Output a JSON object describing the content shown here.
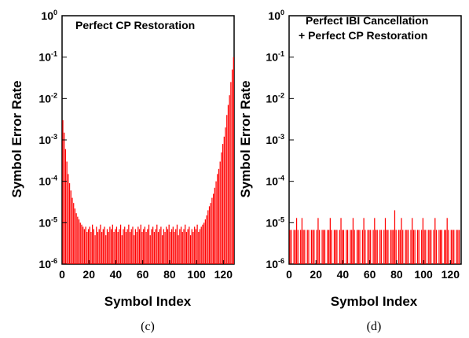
{
  "chart_data": [
    {
      "panel": "c",
      "type": "bar",
      "title": "Perfect CP Restoration",
      "caption": "(c)",
      "xlabel": "Symbol Index",
      "ylabel": "Symbol Error Rate",
      "xlim": [
        0,
        128
      ],
      "ylim": [
        1e-06,
        1
      ],
      "yscale": "log",
      "xticks": [
        0,
        20,
        40,
        60,
        80,
        100,
        120
      ],
      "yticks": [
        {
          "base": "10",
          "exp": "0",
          "value": 1
        },
        {
          "base": "10",
          "exp": "-1",
          "value": 0.1
        },
        {
          "base": "10",
          "exp": "-2",
          "value": 0.01
        },
        {
          "base": "10",
          "exp": "-3",
          "value": 0.001
        },
        {
          "base": "10",
          "exp": "-4",
          "value": 0.0001
        },
        {
          "base": "10",
          "exp": "-5",
          "value": 1e-05
        },
        {
          "base": "10",
          "exp": "-6",
          "value": 1e-06
        }
      ],
      "color": "#ff0000",
      "x": [
        0,
        1,
        2,
        3,
        4,
        5,
        6,
        7,
        8,
        9,
        10,
        11,
        12,
        13,
        14,
        15,
        16,
        17,
        18,
        19,
        20,
        21,
        22,
        23,
        24,
        25,
        26,
        27,
        28,
        29,
        30,
        31,
        32,
        33,
        34,
        35,
        36,
        37,
        38,
        39,
        40,
        41,
        42,
        43,
        44,
        45,
        46,
        47,
        48,
        49,
        50,
        51,
        52,
        53,
        54,
        55,
        56,
        57,
        58,
        59,
        60,
        61,
        62,
        63,
        64,
        65,
        66,
        67,
        68,
        69,
        70,
        71,
        72,
        73,
        74,
        75,
        76,
        77,
        78,
        79,
        80,
        81,
        82,
        83,
        84,
        85,
        86,
        87,
        88,
        89,
        90,
        91,
        92,
        93,
        94,
        95,
        96,
        97,
        98,
        99,
        100,
        101,
        102,
        103,
        104,
        105,
        106,
        107,
        108,
        109,
        110,
        111,
        112,
        113,
        114,
        115,
        116,
        117,
        118,
        119,
        120,
        121,
        122,
        123,
        124,
        125,
        126,
        127
      ],
      "values": [
        0.003,
        0.0015,
        0.0006,
        0.0003,
        0.00015,
        9e-05,
        6e-05,
        4e-05,
        3e-05,
        2.2e-05,
        1.7e-05,
        1.4e-05,
        1.2e-05,
        1e-05,
        9e-06,
        8e-06,
        7e-06,
        8e-06,
        6e-06,
        7e-06,
        8e-06,
        6e-06,
        9e-06,
        7e-06,
        5e-06,
        8e-06,
        6e-06,
        7e-06,
        9e-06,
        6e-06,
        7e-06,
        8e-06,
        5e-06,
        7e-06,
        6e-06,
        8e-06,
        7e-06,
        9e-06,
        6e-06,
        7e-06,
        8e-06,
        6e-06,
        7e-06,
        9e-06,
        5e-06,
        7e-06,
        8e-06,
        6e-06,
        7e-06,
        9e-06,
        6e-06,
        7e-06,
        8e-06,
        5e-06,
        7e-06,
        6e-06,
        8e-06,
        7e-06,
        9e-06,
        6e-06,
        7e-06,
        8e-06,
        6e-06,
        7e-06,
        9e-06,
        5e-06,
        7e-06,
        8e-06,
        6e-06,
        7e-06,
        9e-06,
        6e-06,
        7e-06,
        8e-06,
        5e-06,
        7e-06,
        6e-06,
        8e-06,
        7e-06,
        9e-06,
        6e-06,
        7e-06,
        8e-06,
        6e-06,
        7e-06,
        9e-06,
        5e-06,
        7e-06,
        8e-06,
        6e-06,
        7e-06,
        9e-06,
        6e-06,
        7e-06,
        8e-06,
        5e-06,
        7e-06,
        6e-06,
        8e-06,
        7e-06,
        9e-06,
        6e-06,
        7e-06,
        8e-06,
        9e-06,
        1e-05,
        1.2e-05,
        1.5e-05,
        2e-05,
        2.5e-05,
        3e-05,
        4e-05,
        5e-05,
        7e-05,
        0.0001,
        0.00015,
        0.0002,
        0.0003,
        0.0005,
        0.0008,
        0.0012,
        0.002,
        0.004,
        0.007,
        0.012,
        0.025,
        0.05,
        0.1
      ]
    },
    {
      "panel": "d",
      "type": "bar",
      "title": "Perfect IBI Cancellation",
      "subtitle": "+ Perfect CP Restoration",
      "caption": "(d)",
      "xlabel": "Symbol Index",
      "ylabel": "Symbol Error Rate",
      "xlim": [
        0,
        128
      ],
      "ylim": [
        1e-06,
        1
      ],
      "yscale": "log",
      "xticks": [
        0,
        20,
        40,
        60,
        80,
        100,
        120
      ],
      "yticks": [
        {
          "base": "10",
          "exp": "0",
          "value": 1
        },
        {
          "base": "10",
          "exp": "-1",
          "value": 0.1
        },
        {
          "base": "10",
          "exp": "-2",
          "value": 0.01
        },
        {
          "base": "10",
          "exp": "-3",
          "value": 0.001
        },
        {
          "base": "10",
          "exp": "-4",
          "value": 0.0001
        },
        {
          "base": "10",
          "exp": "-5",
          "value": 1e-05
        },
        {
          "base": "10",
          "exp": "-6",
          "value": 1e-06
        }
      ],
      "color": "#ff0000",
      "x": [
        0,
        1,
        2,
        3,
        4,
        5,
        6,
        7,
        8,
        9,
        10,
        11,
        12,
        13,
        14,
        15,
        16,
        17,
        18,
        19,
        20,
        21,
        22,
        23,
        24,
        25,
        26,
        27,
        28,
        29,
        30,
        31,
        32,
        33,
        34,
        35,
        36,
        37,
        38,
        39,
        40,
        41,
        42,
        43,
        44,
        45,
        46,
        47,
        48,
        49,
        50,
        51,
        52,
        53,
        54,
        55,
        56,
        57,
        58,
        59,
        60,
        61,
        62,
        63,
        64,
        65,
        66,
        67,
        68,
        69,
        70,
        71,
        72,
        73,
        74,
        75,
        76,
        77,
        78,
        79,
        80,
        81,
        82,
        83,
        84,
        85,
        86,
        87,
        88,
        89,
        90,
        91,
        92,
        93,
        94,
        95,
        96,
        97,
        98,
        99,
        100,
        101,
        102,
        103,
        104,
        105,
        106,
        107,
        108,
        109,
        110,
        111,
        112,
        113,
        114,
        115,
        116,
        117,
        118,
        119,
        120,
        121,
        122,
        123,
        124,
        125,
        126,
        127
      ],
      "values": [
        6.7e-06,
        6.7e-06,
        0,
        6.7e-06,
        6.7e-06,
        1.3e-05,
        6.7e-06,
        0,
        6.7e-06,
        1.3e-05,
        6.7e-06,
        6.7e-06,
        0,
        6.7e-06,
        6.7e-06,
        0,
        6.7e-06,
        6.7e-06,
        6.7e-06,
        0,
        6.7e-06,
        1.3e-05,
        6.7e-06,
        0,
        6.7e-06,
        6.7e-06,
        6.7e-06,
        0,
        6.7e-06,
        6.7e-06,
        1.3e-05,
        6.7e-06,
        0,
        6.7e-06,
        6.7e-06,
        6.7e-06,
        0,
        6.7e-06,
        1.3e-05,
        6.7e-06,
        6.7e-06,
        0,
        6.7e-06,
        6.7e-06,
        0,
        6.7e-06,
        6.7e-06,
        1.3e-05,
        6.7e-06,
        0,
        6.7e-06,
        6.7e-06,
        6.7e-06,
        0,
        6.7e-06,
        1.3e-05,
        6.7e-06,
        0,
        6.7e-06,
        6.7e-06,
        6.7e-06,
        0,
        6.7e-06,
        1.3e-05,
        6.7e-06,
        6.7e-06,
        0,
        6.7e-06,
        6.7e-06,
        0,
        6.7e-06,
        1.3e-05,
        6.7e-06,
        6.7e-06,
        0,
        6.7e-06,
        6.7e-06,
        6.7e-06,
        2e-05,
        6.7e-06,
        0,
        6.7e-06,
        6.7e-06,
        1.3e-05,
        6.7e-06,
        0,
        6.7e-06,
        6.7e-06,
        6.7e-06,
        0,
        6.7e-06,
        1.3e-05,
        6.7e-06,
        6.7e-06,
        0,
        6.7e-06,
        6.7e-06,
        0,
        6.7e-06,
        1.3e-05,
        6.7e-06,
        6.7e-06,
        0,
        6.7e-06,
        6.7e-06,
        6.7e-06,
        0,
        6.7e-06,
        1.3e-05,
        6.7e-06,
        0,
        6.7e-06,
        6.7e-06,
        6.7e-06,
        0,
        6.7e-06,
        6.7e-06,
        1.3e-05,
        6.7e-06,
        0,
        6.7e-06,
        6.7e-06,
        6.7e-06,
        0,
        6.7e-06,
        6.7e-06,
        6.7e-06,
        0
      ]
    }
  ]
}
